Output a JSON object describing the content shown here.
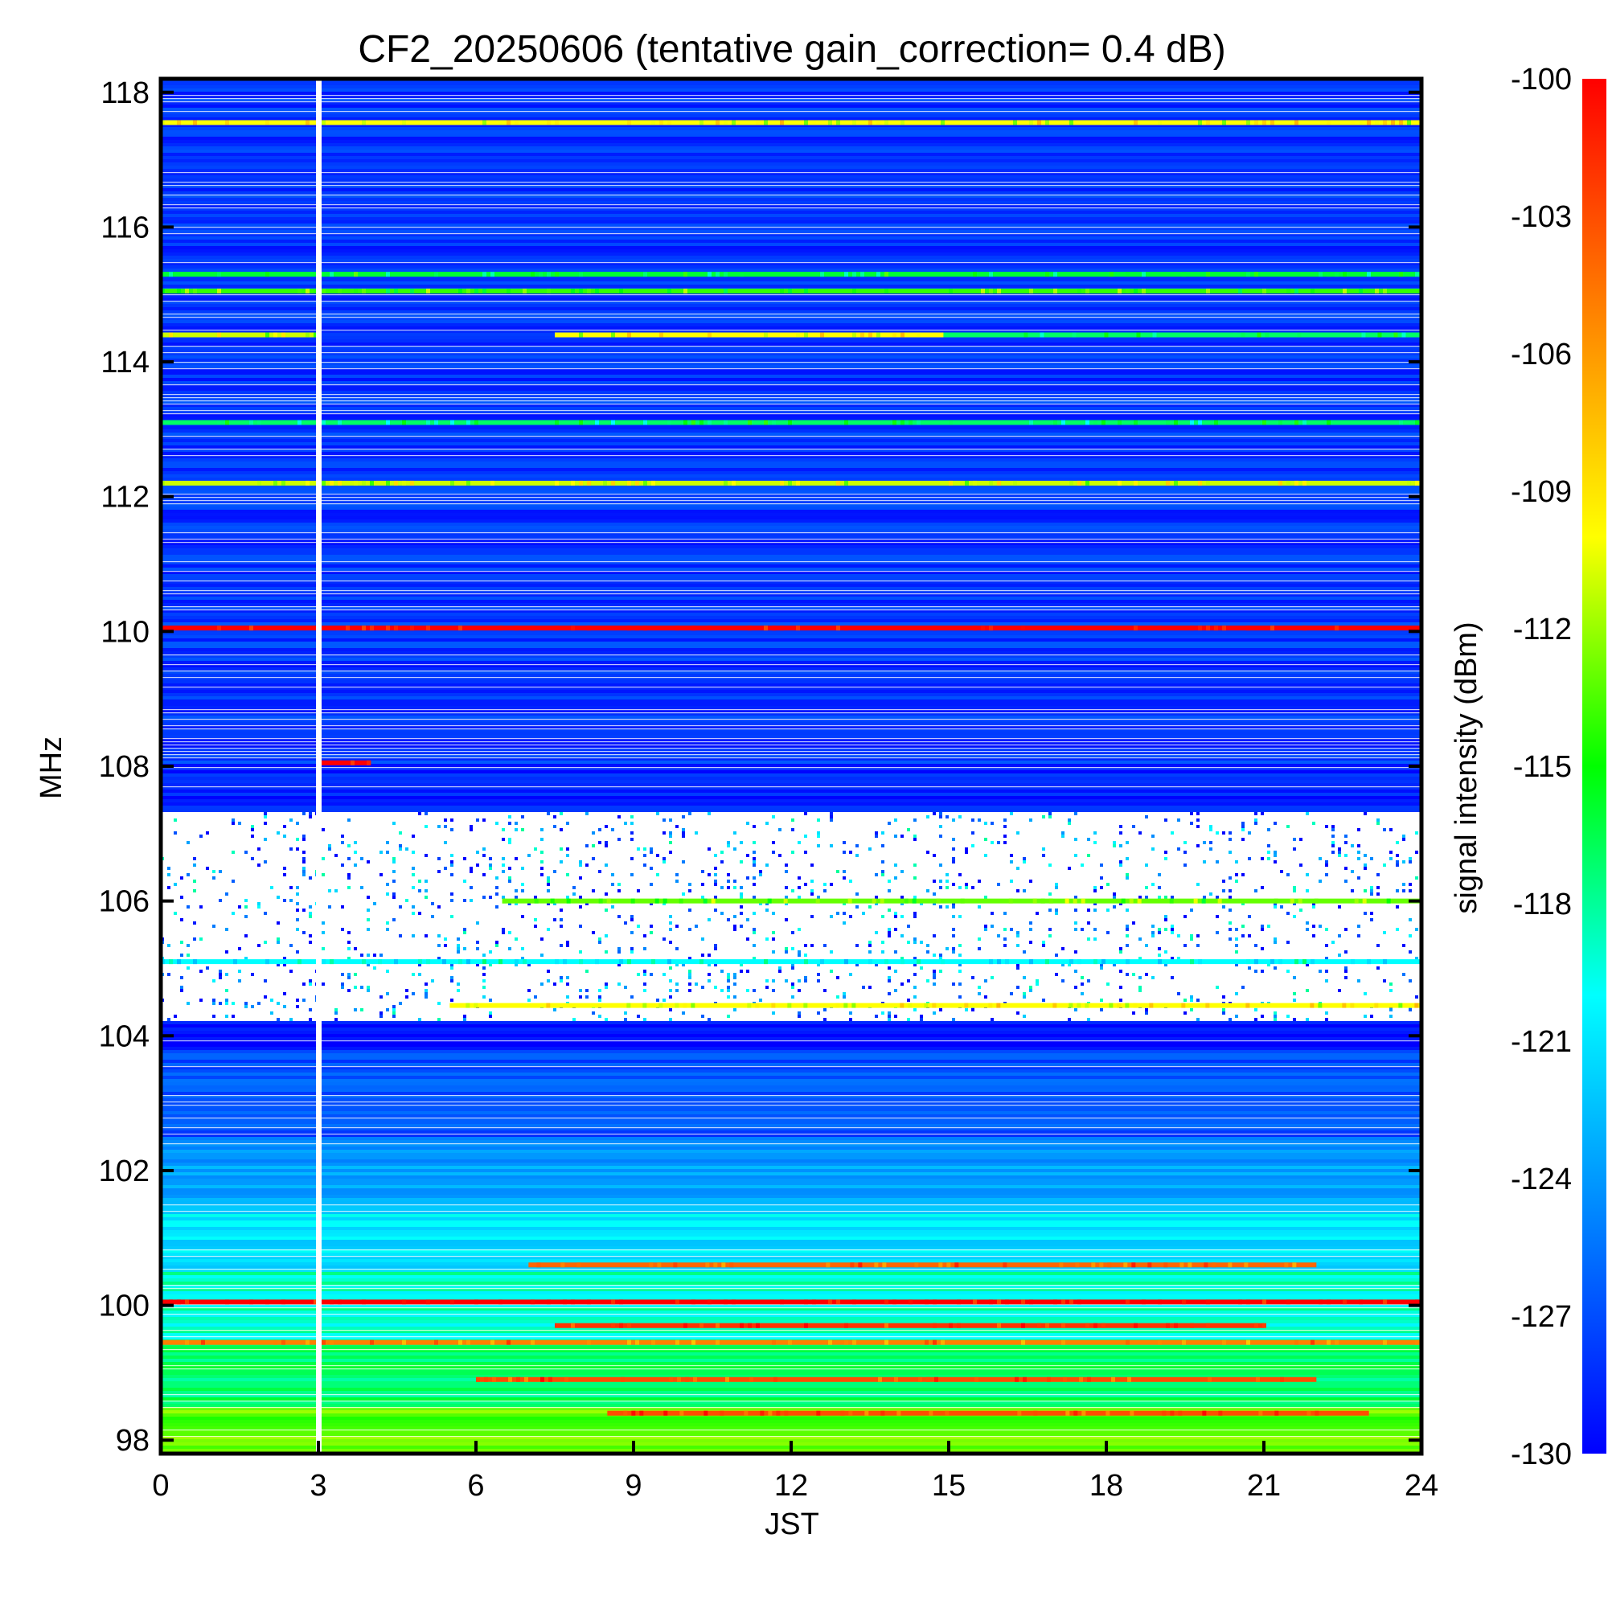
{
  "chart_data": {
    "type": "heatmap",
    "title": "CF2_20250606 (tentative gain_correction=  0.4 dB)",
    "xlabel": "JST",
    "ylabel": "MHz",
    "colorbar_label": "signal intensity (dBm)",
    "xlim": [
      0,
      24
    ],
    "ylim": [
      97.8,
      118.2
    ],
    "clim": [
      -130,
      -100
    ],
    "x_ticks": [
      "0",
      "3",
      "6",
      "9",
      "12",
      "15",
      "18",
      "21",
      "24"
    ],
    "y_ticks": [
      "98",
      "100",
      "102",
      "104",
      "106",
      "108",
      "110",
      "112",
      "114",
      "116",
      "118"
    ],
    "colorbar_ticks": [
      "-100",
      "-103",
      "-106",
      "-109",
      "-112",
      "-115",
      "-118",
      "-121",
      "-124",
      "-127",
      "-130"
    ],
    "colormap": [
      "#0000ff",
      "#0080ff",
      "#00ffff",
      "#00ff00",
      "#ffff00",
      "#ff8000",
      "#ff0000"
    ],
    "gap_fill_color": "#ffffff",
    "data_gap_time_hours": 3.0,
    "background_dbm": [
      {
        "freq_from": 97.8,
        "freq_to": 98.5,
        "dbm": -113
      },
      {
        "freq_from": 98.5,
        "freq_to": 99.5,
        "dbm": -117
      },
      {
        "freq_from": 99.5,
        "freq_to": 100.5,
        "dbm": -119
      },
      {
        "freq_from": 100.5,
        "freq_to": 101.5,
        "dbm": -121
      },
      {
        "freq_from": 101.5,
        "freq_to": 102.5,
        "dbm": -124
      },
      {
        "freq_from": 102.5,
        "freq_to": 103.8,
        "dbm": -127
      },
      {
        "freq_from": 103.8,
        "freq_to": 108.0,
        "dbm": -129
      },
      {
        "freq_from": 108.0,
        "freq_to": 118.2,
        "dbm": -128
      }
    ],
    "empty_bands": [
      {
        "freq_from": 104.2,
        "freq_to": 107.3
      }
    ],
    "stations": [
      {
        "freq": 117.55,
        "dbm": -110,
        "t_from": 0,
        "t_to": 24
      },
      {
        "freq": 115.3,
        "dbm": -116,
        "t_from": 0,
        "t_to": 24
      },
      {
        "freq": 115.05,
        "dbm": -114,
        "t_from": 0,
        "t_to": 24
      },
      {
        "freq": 114.4,
        "dbm": -111,
        "t_from": 0,
        "t_to": 3
      },
      {
        "freq": 114.4,
        "dbm": -110,
        "t_from": 7.5,
        "t_to": 14.9
      },
      {
        "freq": 114.4,
        "dbm": -117,
        "t_from": 14.9,
        "t_to": 24
      },
      {
        "freq": 113.1,
        "dbm": -117,
        "t_from": 0,
        "t_to": 24
      },
      {
        "freq": 112.2,
        "dbm": -111,
        "t_from": 0,
        "t_to": 24
      },
      {
        "freq": 110.05,
        "dbm": -100,
        "t_from": 0,
        "t_to": 24
      },
      {
        "freq": 108.05,
        "dbm": -100,
        "t_from": 3.0,
        "t_to": 4.0
      },
      {
        "freq": 106.0,
        "dbm": -113,
        "t_from": 6.5,
        "t_to": 24
      },
      {
        "freq": 105.1,
        "dbm": -120,
        "t_from": 0,
        "t_to": 24
      },
      {
        "freq": 104.45,
        "dbm": -110,
        "t_from": 5.5,
        "t_to": 24
      },
      {
        "freq": 100.05,
        "dbm": -100,
        "t_from": 0,
        "t_to": 24
      },
      {
        "freq": 100.6,
        "dbm": -104,
        "t_from": 7.0,
        "t_to": 22.0
      },
      {
        "freq": 99.7,
        "dbm": -102,
        "t_from": 7.5,
        "t_to": 21.0
      },
      {
        "freq": 99.45,
        "dbm": -105,
        "t_from": 0,
        "t_to": 24
      },
      {
        "freq": 98.9,
        "dbm": -103,
        "t_from": 6.0,
        "t_to": 22.0
      },
      {
        "freq": 98.4,
        "dbm": -103,
        "t_from": 8.5,
        "t_to": 23.0
      }
    ]
  }
}
